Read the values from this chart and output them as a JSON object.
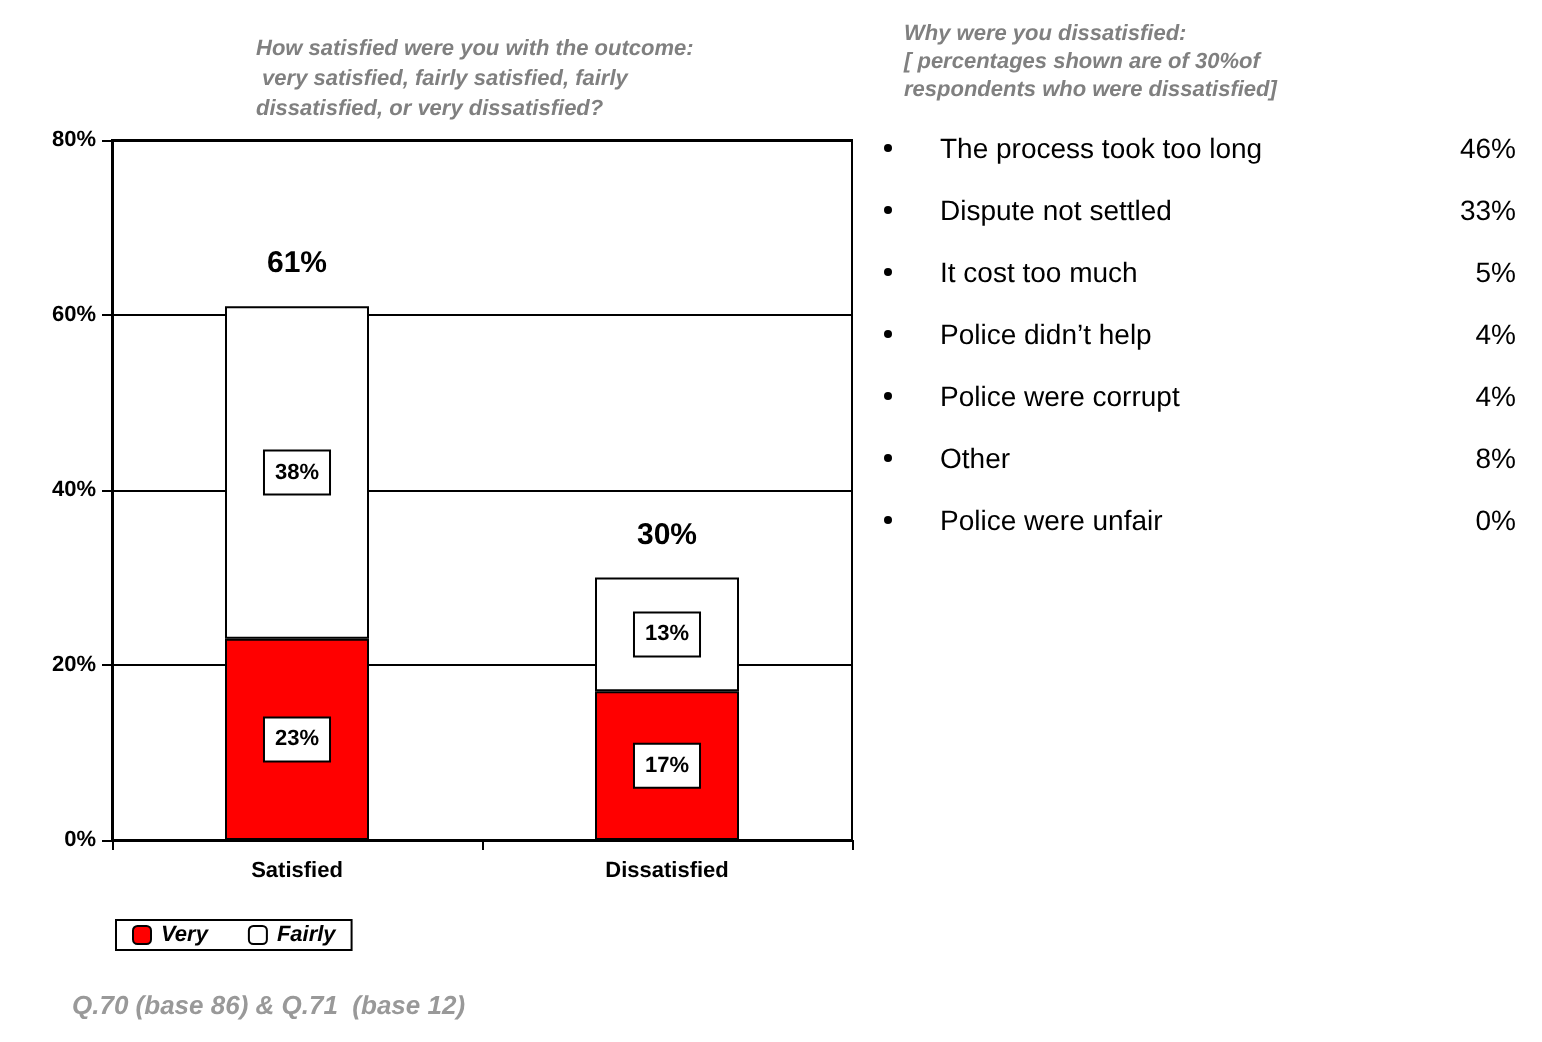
{
  "chart_data": [
    {
      "type": "bar",
      "title": "How satisfied were you with the outcome:\n very satisfied, fairly satisfied, fairly\ndissatisfied, or very dissatisfied?",
      "categories": [
        "Satisfied",
        "Dissatisfied"
      ],
      "stacked": true,
      "series": [
        {
          "name": "Very",
          "color": "#ff0000",
          "values": [
            23,
            17
          ],
          "value_labels": [
            "23%",
            "17%"
          ]
        },
        {
          "name": "Fairly",
          "color": "#ffffff",
          "values": [
            38,
            13
          ],
          "value_labels": [
            "38%",
            "13%"
          ]
        }
      ],
      "totals": [
        "61%",
        "30%"
      ],
      "ylim": [
        0,
        80
      ],
      "yticks": [
        {
          "value": 0,
          "label": "0%"
        },
        {
          "value": 20,
          "label": "20%"
        },
        {
          "value": 40,
          "label": "40%"
        },
        {
          "value": 60,
          "label": "60%"
        },
        {
          "value": 80,
          "label": "80%"
        }
      ],
      "grid": "y",
      "legend": "bottom",
      "annotations": [
        "Q.70 (base 86) & Q.71  (base 12)"
      ]
    },
    {
      "type": "other",
      "title": "Why were you dissatisfied:\n[ percentages shown are of 30%of\nrespondents who were dissatisfied]",
      "categories": [
        "The process took too long",
        "Dispute not settled",
        "It cost too much",
        "Police didn’t help",
        "Police were corrupt",
        "Other",
        "Police were unfair"
      ],
      "value_labels": [
        "46%",
        "33%",
        "5%",
        "4%",
        "4%",
        "8%",
        "0%"
      ]
    }
  ]
}
